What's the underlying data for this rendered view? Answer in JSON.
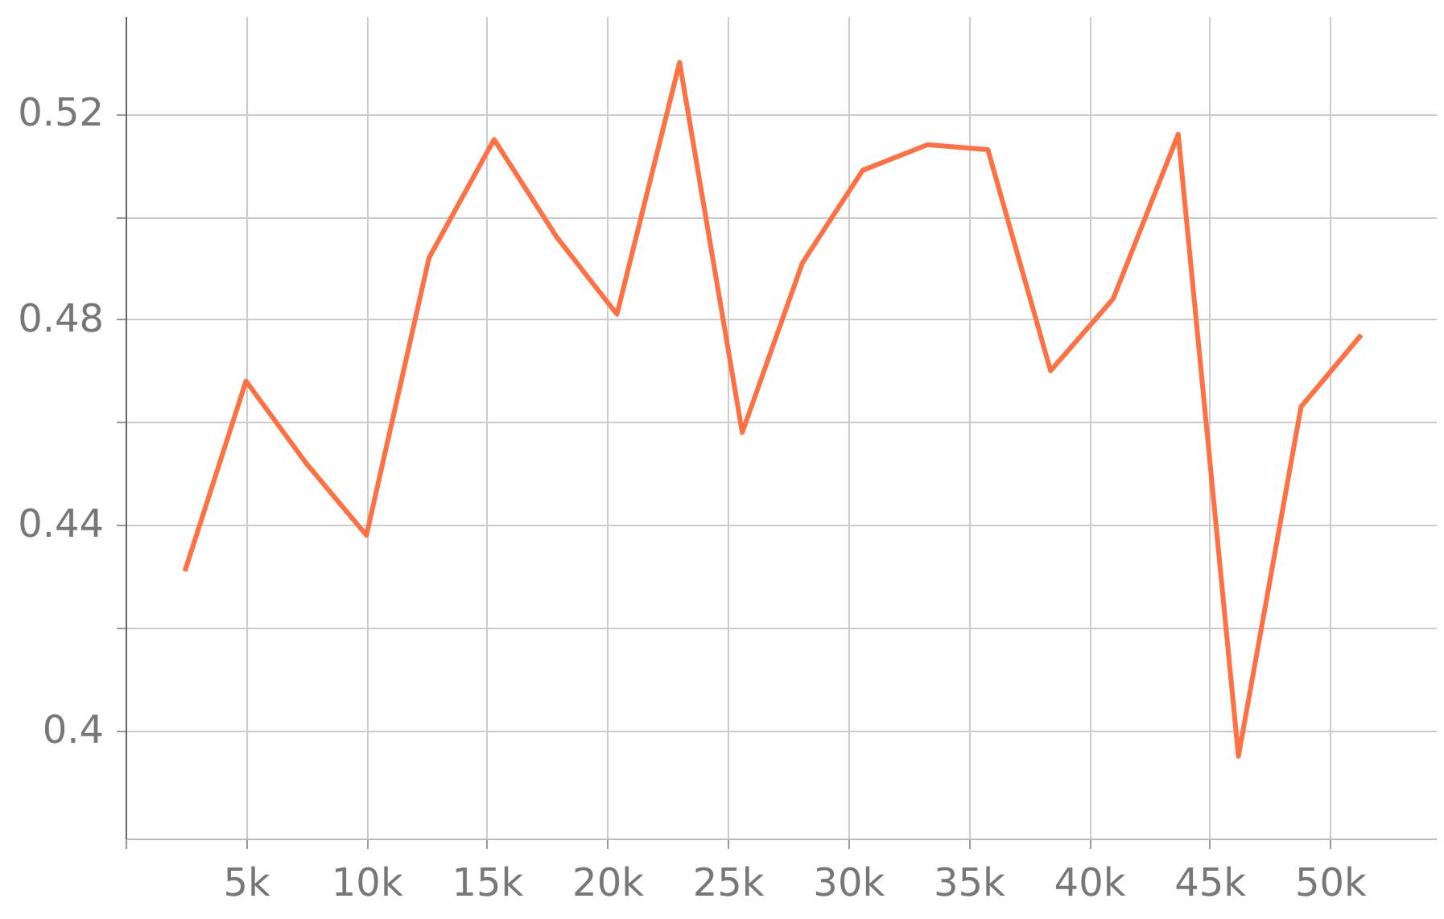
{
  "chart_data": {
    "type": "line",
    "x": [
      2460,
      5000,
      7500,
      10000,
      12600,
      15300,
      17900,
      20400,
      23000,
      25600,
      28100,
      30600,
      33300,
      35800,
      38400,
      41000,
      43700,
      46200,
      48800,
      51300
    ],
    "series": [
      {
        "color": "#ff7043",
        "values": [
          0.431,
          0.468,
          0.452,
          0.438,
          0.492,
          0.515,
          0.496,
          0.481,
          0.53,
          0.458,
          0.491,
          0.509,
          0.514,
          0.513,
          0.47,
          0.484,
          0.516,
          0.395,
          0.463,
          0.477
        ]
      }
    ],
    "xlim": [
      0,
      54400
    ],
    "xticks": [
      {
        "value": 0,
        "label": null
      },
      {
        "value": 5000,
        "label": "5k"
      },
      {
        "value": 10000,
        "label": "10k"
      },
      {
        "value": 15000,
        "label": "15k"
      },
      {
        "value": 20000,
        "label": "20k"
      },
      {
        "value": 25000,
        "label": "25k"
      },
      {
        "value": 30000,
        "label": "30k"
      },
      {
        "value": 35000,
        "label": "35k"
      },
      {
        "value": 40000,
        "label": "40k"
      },
      {
        "value": 45000,
        "label": "45k"
      },
      {
        "value": 50000,
        "label": "50k"
      }
    ],
    "ylim": [
      0.379,
      0.539
    ],
    "yticks": [
      {
        "value": 0.4,
        "label": "0.4"
      },
      {
        "value": 0.42,
        "label": null
      },
      {
        "value": 0.44,
        "label": "0.44"
      },
      {
        "value": 0.46,
        "label": null
      },
      {
        "value": 0.48,
        "label": "0.48"
      },
      {
        "value": 0.5,
        "label": null
      },
      {
        "value": 0.52,
        "label": "0.52"
      }
    ],
    "grid": true,
    "marker": "none",
    "line_style": "solid"
  }
}
